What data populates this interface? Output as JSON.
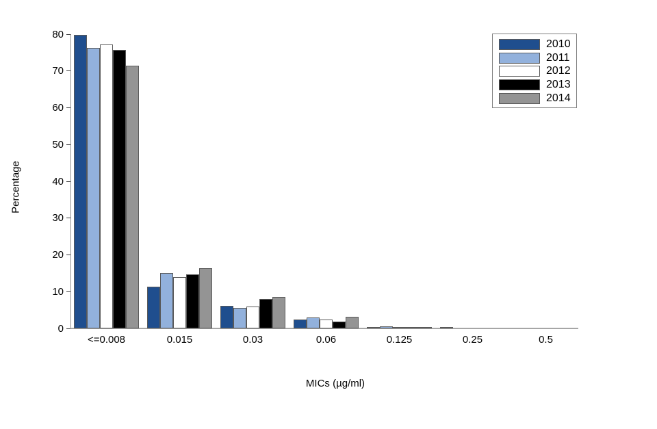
{
  "chart_data": {
    "type": "bar",
    "title": "",
    "xlabel": "MICs (µg/ml)",
    "ylabel": "Percentage",
    "categories": [
      "<=0.008",
      "0.015",
      "0.03",
      "0.06",
      "0.125",
      "0.25",
      "0.5"
    ],
    "series": [
      {
        "name": "2010",
        "color": "#1f4e8e",
        "values": [
          79.8,
          11.3,
          6.1,
          2.4,
          0.4,
          0.2,
          0
        ]
      },
      {
        "name": "2011",
        "color": "#92b1dc",
        "values": [
          76.2,
          15.1,
          5.5,
          3.0,
          0.5,
          0,
          0
        ]
      },
      {
        "name": "2012",
        "color": "#ffffff",
        "values": [
          77.3,
          14.0,
          6.0,
          2.5,
          0.2,
          0,
          0
        ]
      },
      {
        "name": "2013",
        "color": "#000000",
        "values": [
          75.8,
          14.7,
          8.0,
          1.8,
          0.2,
          0,
          0
        ]
      },
      {
        "name": "2014",
        "color": "#949494",
        "values": [
          71.5,
          16.4,
          8.6,
          3.2,
          0.1,
          0,
          0
        ]
      }
    ],
    "ylim": [
      0,
      80
    ],
    "yticks": [
      0,
      10,
      20,
      30,
      40,
      50,
      60,
      70,
      80
    ],
    "grid": false,
    "legend_position": "top-right",
    "bar_border_color": "#595959",
    "axis_color": "#8c8c8c"
  }
}
